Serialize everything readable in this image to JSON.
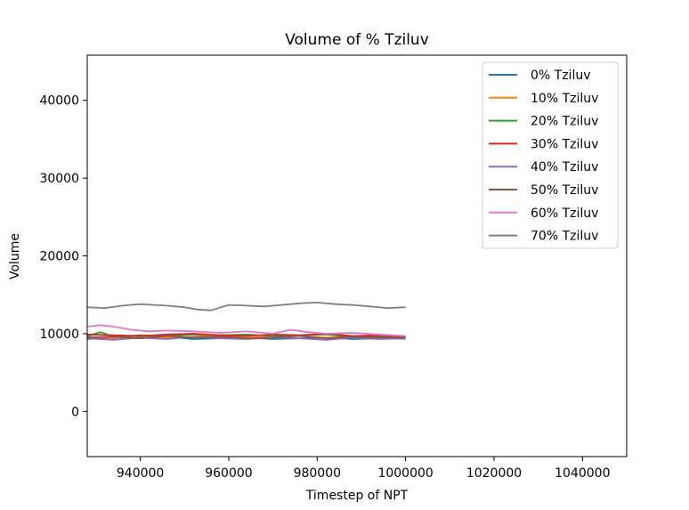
{
  "chart_data": {
    "type": "line",
    "title": "Volume of % Tziluv",
    "xlabel": "Timestep of NPT",
    "ylabel": "Volume",
    "xlim": [
      928000,
      1050000
    ],
    "ylim": [
      -5800,
      45800
    ],
    "xticks": [
      940000,
      960000,
      980000,
      1000000,
      1020000,
      1040000
    ],
    "yticks": [
      0,
      10000,
      20000,
      30000,
      40000
    ],
    "grid": false,
    "legend_position": "top-right",
    "series": [
      {
        "name": "0% Tziluv",
        "color": "#1f77b4",
        "x": [
          928000,
          934000,
          940000,
          946000,
          952000,
          958000,
          964000,
          970000,
          976000,
          982000,
          988000,
          994000,
          1000000
        ],
        "y": [
          9300,
          9500,
          9400,
          9600,
          9300,
          9400,
          9500,
          9300,
          9400,
          9500,
          9300,
          9400,
          9350
        ]
      },
      {
        "name": "10% Tziluv",
        "color": "#ff7f0e",
        "x": [
          928000,
          934000,
          940000,
          946000,
          952000,
          958000,
          964000,
          970000,
          976000,
          982000,
          988000,
          994000,
          1000000
        ],
        "y": [
          9600,
          9400,
          9700,
          9500,
          9600,
          9800,
          9500,
          9600,
          9700,
          9500,
          9600,
          9700,
          9600
        ]
      },
      {
        "name": "20% Tziluv",
        "color": "#2ca02c",
        "x": [
          928000,
          931000,
          934000,
          940000,
          946000,
          952000,
          958000,
          964000,
          970000,
          976000,
          982000,
          988000,
          994000,
          1000000
        ],
        "y": [
          9700,
          10200,
          9600,
          9800,
          9700,
          9900,
          9800,
          9900,
          9700,
          9800,
          9900,
          9600,
          9700,
          9600
        ]
      },
      {
        "name": "30% Tziluv",
        "color": "#d62728",
        "x": [
          928000,
          934000,
          940000,
          946000,
          952000,
          958000,
          964000,
          970000,
          976000,
          982000,
          988000,
          994000,
          1000000
        ],
        "y": [
          9900,
          9800,
          9700,
          9900,
          10000,
          9800,
          9700,
          9900,
          9800,
          10000,
          9700,
          9800,
          9600
        ]
      },
      {
        "name": "40% Tziluv",
        "color": "#9467bd",
        "x": [
          928000,
          934000,
          940000,
          946000,
          952000,
          958000,
          964000,
          970000,
          976000,
          982000,
          988000,
          994000,
          1000000
        ],
        "y": [
          9400,
          9200,
          9500,
          9300,
          9600,
          9400,
          9300,
          9500,
          9400,
          9200,
          9500,
          9300,
          9400
        ]
      },
      {
        "name": "50% Tziluv",
        "color": "#8c564b",
        "x": [
          928000,
          934000,
          940000,
          946000,
          952000,
          958000,
          964000,
          970000,
          976000,
          982000,
          988000,
          994000,
          1000000
        ],
        "y": [
          9500,
          9600,
          9400,
          9700,
          9500,
          9600,
          9400,
          9500,
          9700,
          9400,
          9600,
          9500,
          9500
        ]
      },
      {
        "name": "60% Tziluv",
        "color": "#e377c2",
        "x": [
          928000,
          931000,
          934000,
          938000,
          942000,
          946000,
          952000,
          958000,
          964000,
          970000,
          974000,
          978000,
          982000,
          988000,
          994000,
          1000000
        ],
        "y": [
          10900,
          11100,
          10900,
          10500,
          10300,
          10400,
          10300,
          10100,
          10300,
          10000,
          10500,
          10200,
          10000,
          10100,
          9900,
          9700
        ]
      },
      {
        "name": "70% Tziluv",
        "color": "#7f7f7f",
        "x": [
          928000,
          932000,
          936000,
          940000,
          943000,
          946000,
          950000,
          953000,
          956000,
          960000,
          964000,
          968000,
          972000,
          976000,
          980000,
          984000,
          988000,
          992000,
          996000,
          1000000
        ],
        "y": [
          13400,
          13300,
          13600,
          13800,
          13700,
          13600,
          13400,
          13100,
          13000,
          13700,
          13600,
          13500,
          13700,
          13900,
          14000,
          13800,
          13700,
          13500,
          13300,
          13400
        ]
      }
    ]
  }
}
